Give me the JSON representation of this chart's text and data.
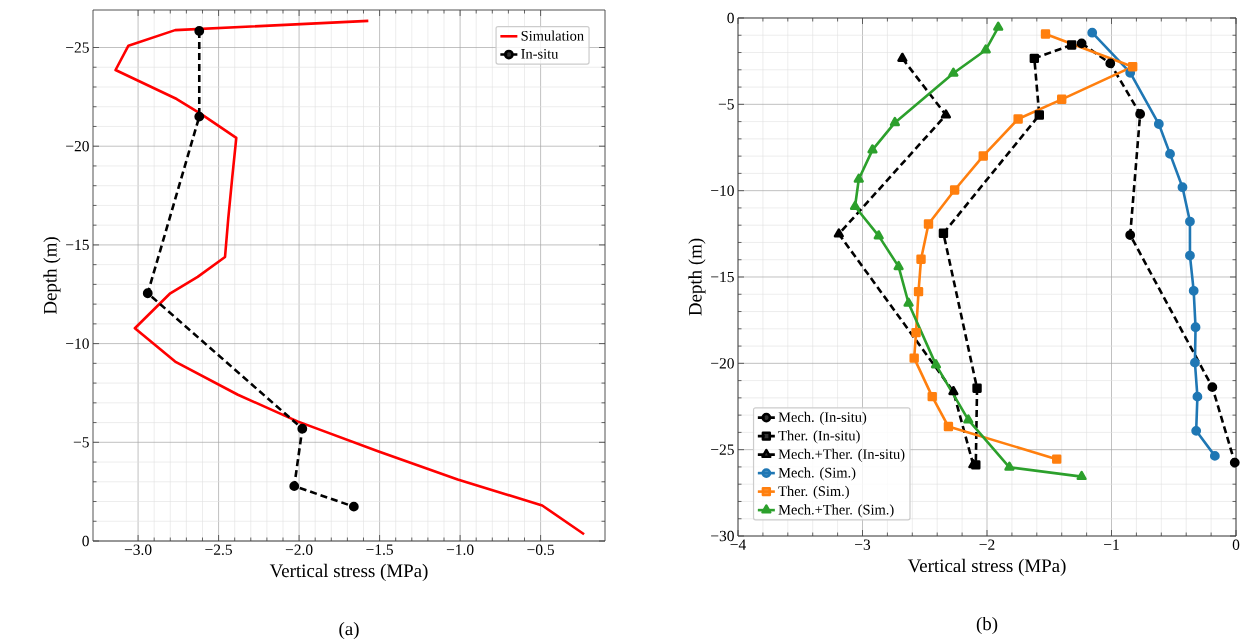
{
  "chart_data": [
    {
      "type": "line",
      "xlabel": "Vertical stress (MPa)",
      "ylabel": "Depth (m)",
      "annotations": [
        "(a)"
      ],
      "xlim": [
        -3.28,
        -0.1
      ],
      "ylim": [
        0,
        -26.9
      ],
      "xticks": [
        {
          "value": -3.0,
          "label": "−3.0"
        },
        {
          "value": -2.5,
          "label": "−2.5"
        },
        {
          "value": -2.0,
          "label": "−2.0"
        },
        {
          "value": -1.5,
          "label": "−1.5"
        },
        {
          "value": -1.0,
          "label": "−1.0"
        },
        {
          "value": -0.5,
          "label": "−0.5"
        }
      ],
      "yticks": [
        0,
        {
          "value": -5,
          "label": "−5"
        },
        {
          "value": -10,
          "label": "−10"
        },
        {
          "value": -15,
          "label": "−15"
        },
        {
          "value": -20,
          "label": "−20"
        },
        {
          "value": -25,
          "label": "−25"
        }
      ],
      "grid": true,
      "legend": "top right",
      "series": [
        {
          "name": "Simulation",
          "color": "#ff0000",
          "marker": "none",
          "line_style": "solid",
          "x": [
            -1.57,
            -2.77,
            -3.06,
            -3.14,
            -2.76,
            -2.61,
            -2.39,
            -2.415,
            -2.44,
            -2.46,
            -2.63,
            -2.8,
            -3.02,
            -2.77,
            -2.38,
            -2.01,
            -1.51,
            -1.015,
            -0.49,
            -0.23
          ],
          "values": [
            -26.35,
            -25.88,
            -25.09,
            -23.86,
            -22.39,
            -21.64,
            -20.42,
            -18.43,
            -16.33,
            -14.39,
            -13.38,
            -12.55,
            -10.78,
            -9.09,
            -7.41,
            -6.06,
            -4.55,
            -3.12,
            -1.8,
            -0.34
          ]
        },
        {
          "name": "In-situ",
          "color": "#000000",
          "marker": "circle",
          "line_style": "dashed",
          "x": [
            -2.62,
            -2.62,
            -2.94,
            -1.98,
            -2.03,
            -1.66
          ],
          "values": [
            -25.84,
            -21.5,
            -12.55,
            -5.69,
            -2.78,
            -1.74
          ]
        }
      ]
    },
    {
      "type": "line",
      "xlabel": "Vertical stress (MPa)",
      "ylabel": "Depth (m)",
      "annotations": [
        "(b)"
      ],
      "xlim": [
        -4,
        0
      ],
      "ylim": [
        -30,
        0
      ],
      "xticks": [
        {
          "value": -4,
          "label": "−4"
        },
        {
          "value": -3,
          "label": "−3"
        },
        {
          "value": -2,
          "label": "−2"
        },
        {
          "value": -1,
          "label": "−1"
        },
        0
      ],
      "yticks": [
        {
          "value": -30,
          "label": "−30"
        },
        {
          "value": -25,
          "label": "−25"
        },
        {
          "value": -20,
          "label": "−20"
        },
        {
          "value": -15,
          "label": "−15"
        },
        {
          "value": -10,
          "label": "−10"
        },
        {
          "value": -5,
          "label": "−5"
        },
        0
      ],
      "grid": true,
      "legend": "bottom left",
      "series": [
        {
          "name": "Mech. (In-situ)",
          "color": "#000000",
          "marker": "circle",
          "line_style": "dashed",
          "x": [
            -1.24,
            -1.01,
            -0.77,
            -0.85,
            -0.19,
            -0.01
          ],
          "values": [
            -1.47,
            -2.63,
            -5.56,
            -12.57,
            -21.38,
            -25.75
          ]
        },
        {
          "name": "Ther. (In-situ)",
          "color": "#000000",
          "marker": "square",
          "line_style": "dashed",
          "x": [
            -1.32,
            -1.62,
            -1.58,
            -2.35,
            -2.08,
            -2.09
          ],
          "values": [
            -1.56,
            -2.34,
            -5.62,
            -12.47,
            -21.44,
            -25.88
          ]
        },
        {
          "name": "Mech.+Ther. (In-situ)",
          "color": "#000000",
          "marker": "triangle",
          "line_style": "dashed",
          "x": [
            -2.68,
            -2.33,
            -3.19,
            -2.27,
            -2.11
          ],
          "values": [
            -2.34,
            -5.62,
            -12.51,
            -21.64,
            -25.88
          ]
        },
        {
          "name": "Mech. (Sim.)",
          "color": "#1f77b4",
          "marker": "circle",
          "line_style": "solid",
          "x": [
            -1.155,
            -0.85,
            -0.62,
            -0.53,
            -0.43,
            -0.37,
            -0.37,
            -0.34,
            -0.325,
            -0.33,
            -0.31,
            -0.32,
            -0.17
          ],
          "values": [
            -0.85,
            -3.17,
            -6.14,
            -7.87,
            -9.8,
            -11.79,
            -13.76,
            -15.8,
            -17.91,
            -19.96,
            -21.93,
            -23.91,
            -25.36
          ]
        },
        {
          "name": "Ther. (Sim.)",
          "color": "#ff7f0e",
          "marker": "square",
          "line_style": "solid",
          "x": [
            -1.53,
            -0.83,
            -1.4,
            -1.75,
            -2.03,
            -2.26,
            -2.47,
            -2.53,
            -2.55,
            -2.57,
            -2.585,
            -2.44,
            -2.31,
            -1.44
          ],
          "values": [
            -0.93,
            -2.82,
            -4.71,
            -5.85,
            -7.99,
            -9.96,
            -11.93,
            -13.97,
            -15.85,
            -18.22,
            -19.7,
            -21.93,
            -23.66,
            -25.55
          ]
        },
        {
          "name": "Mech.+Ther. (Sim.)",
          "color": "#2ca02c",
          "marker": "triangle",
          "line_style": "solid",
          "x": [
            -1.91,
            -2.01,
            -2.27,
            -2.74,
            -2.92,
            -3.03,
            -3.06,
            -2.87,
            -2.71,
            -2.63,
            -2.41,
            -2.15,
            -1.82,
            -1.24
          ],
          "values": [
            -0.54,
            -1.85,
            -3.2,
            -6.06,
            -7.64,
            -9.34,
            -10.92,
            -12.62,
            -14.4,
            -16.52,
            -20.09,
            -23.28,
            -26.02,
            -26.56
          ]
        }
      ]
    }
  ]
}
